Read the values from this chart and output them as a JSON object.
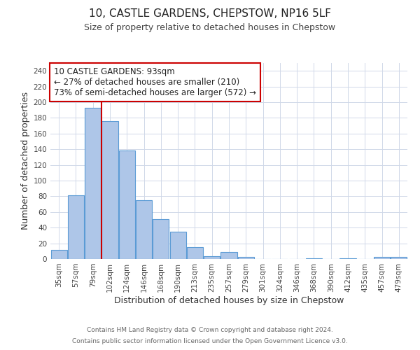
{
  "title": "10, CASTLE GARDENS, CHEPSTOW, NP16 5LF",
  "subtitle": "Size of property relative to detached houses in Chepstow",
  "xlabel": "Distribution of detached houses by size in Chepstow",
  "ylabel": "Number of detached properties",
  "bar_labels": [
    "35sqm",
    "57sqm",
    "79sqm",
    "102sqm",
    "124sqm",
    "146sqm",
    "168sqm",
    "190sqm",
    "213sqm",
    "235sqm",
    "257sqm",
    "279sqm",
    "301sqm",
    "324sqm",
    "346sqm",
    "368sqm",
    "390sqm",
    "412sqm",
    "435sqm",
    "457sqm",
    "479sqm"
  ],
  "bar_values": [
    12,
    81,
    193,
    176,
    138,
    75,
    51,
    35,
    15,
    4,
    9,
    3,
    0,
    0,
    0,
    1,
    0,
    1,
    0,
    3,
    3
  ],
  "bar_color": "#aec6e8",
  "bar_edge_color": "#5b9bd5",
  "ylim": [
    0,
    250
  ],
  "yticks": [
    0,
    20,
    40,
    60,
    80,
    100,
    120,
    140,
    160,
    180,
    200,
    220,
    240
  ],
  "vline_color": "#cc0000",
  "annotation_text": "10 CASTLE GARDENS: 93sqm\n← 27% of detached houses are smaller (210)\n73% of semi-detached houses are larger (572) →",
  "annotation_box_color": "#ffffff",
  "annotation_border_color": "#cc0000",
  "footer_line1": "Contains HM Land Registry data © Crown copyright and database right 2024.",
  "footer_line2": "Contains public sector information licensed under the Open Government Licence v3.0.",
  "bg_color": "#ffffff",
  "grid_color": "#d0d8e8",
  "title_fontsize": 11,
  "subtitle_fontsize": 9,
  "axis_label_fontsize": 9,
  "tick_fontsize": 7.5,
  "annotation_fontsize": 8.5,
  "footer_fontsize": 6.5
}
